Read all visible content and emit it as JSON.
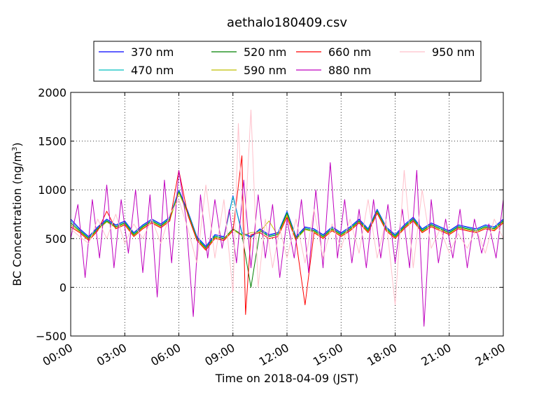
{
  "chart_data": {
    "type": "line",
    "title": "aethalo180409.csv",
    "xlabel": "Time on 2018-04-09 (JST)",
    "ylabel": "BC Concentration (ng/m",
    "ylabel_sup": "3",
    "ylabel_close": ")",
    "xlim": [
      0,
      24
    ],
    "ylim": [
      -500,
      2000
    ],
    "xticks": [
      0,
      3,
      6,
      9,
      12,
      15,
      18,
      21,
      24
    ],
    "xtick_labels": [
      "00:00",
      "03:00",
      "06:00",
      "09:00",
      "12:00",
      "15:00",
      "18:00",
      "21:00",
      "24:00"
    ],
    "yticks": [
      -500,
      0,
      500,
      1000,
      1500,
      2000
    ],
    "ytick_labels": [
      "−500",
      "0",
      "500",
      "1000",
      "1500",
      "2000"
    ],
    "grid": true,
    "legend_position": "top",
    "series": [
      {
        "name": "370 nm",
        "color": "#0000ff",
        "x": [
          0,
          0.5,
          1,
          1.5,
          2,
          2.5,
          3,
          3.5,
          4,
          4.5,
          5,
          5.5,
          6,
          6.5,
          7,
          7.5,
          8,
          8.5,
          9,
          9.5,
          10,
          10.5,
          11,
          11.5,
          12,
          12.5,
          13,
          13.5,
          14,
          14.5,
          15,
          15.5,
          16,
          16.5,
          17,
          17.5,
          18,
          18.5,
          19,
          19.5,
          20,
          20.5,
          21,
          21.5,
          22,
          22.5,
          23,
          23.5,
          24
        ],
        "y": [
          700,
          600,
          520,
          620,
          700,
          640,
          680,
          560,
          640,
          700,
          650,
          720,
          1000,
          780,
          520,
          420,
          540,
          520,
          940,
          560,
          520,
          600,
          540,
          560,
          780,
          520,
          620,
          600,
          540,
          620,
          560,
          620,
          700,
          600,
          800,
          620,
          540,
          640,
          720,
          600,
          660,
          620,
          580,
          640,
          620,
          600,
          640,
          620,
          700
        ]
      },
      {
        "name": "470 nm",
        "color": "#00bfbf",
        "x": [
          0,
          0.5,
          1,
          1.5,
          2,
          2.5,
          3,
          3.5,
          4,
          4.5,
          5,
          5.5,
          6,
          6.5,
          7,
          7.5,
          8,
          8.5,
          9,
          9.5,
          10,
          10.5,
          11,
          11.5,
          12,
          12.5,
          13,
          13.5,
          14,
          14.5,
          15,
          15.5,
          16,
          16.5,
          17,
          17.5,
          18,
          18.5,
          19,
          19.5,
          20,
          20.5,
          21,
          21.5,
          22,
          22.5,
          23,
          23.5,
          24
        ],
        "y": [
          680,
          590,
          510,
          610,
          690,
          630,
          670,
          550,
          630,
          690,
          640,
          710,
          990,
          770,
          510,
          410,
          530,
          510,
          930,
          550,
          510,
          590,
          530,
          550,
          770,
          510,
          610,
          590,
          530,
          610,
          550,
          610,
          690,
          590,
          790,
          610,
          530,
          630,
          710,
          590,
          650,
          610,
          570,
          630,
          610,
          590,
          630,
          610,
          690
        ]
      },
      {
        "name": "520 nm",
        "color": "#008000",
        "x": [
          0,
          0.5,
          1,
          1.5,
          2,
          2.5,
          3,
          3.5,
          4,
          4.5,
          5,
          5.5,
          6,
          6.5,
          7,
          7.5,
          8,
          8.5,
          9,
          9.5,
          10,
          10.5,
          11,
          11.5,
          12,
          12.5,
          13,
          13.5,
          14,
          14.5,
          15,
          15.5,
          16,
          16.5,
          17,
          17.5,
          18,
          18.5,
          19,
          19.5,
          20,
          20.5,
          21,
          21.5,
          22,
          22.5,
          23,
          23.5,
          24
        ],
        "y": [
          660,
          580,
          500,
          600,
          680,
          620,
          660,
          540,
          620,
          680,
          630,
          700,
          980,
          760,
          500,
          400,
          520,
          500,
          600,
          540,
          0,
          580,
          520,
          540,
          760,
          500,
          600,
          580,
          520,
          600,
          540,
          600,
          680,
          580,
          780,
          600,
          520,
          620,
          700,
          580,
          640,
          600,
          560,
          620,
          600,
          580,
          620,
          600,
          680
        ]
      },
      {
        "name": "590 nm",
        "color": "#bfbf00",
        "x": [
          0,
          0.5,
          1,
          1.5,
          2,
          2.5,
          3,
          3.5,
          4,
          4.5,
          5,
          5.5,
          6,
          6.5,
          7,
          7.5,
          8,
          8.5,
          9,
          9.5,
          10,
          10.5,
          11,
          11.5,
          12,
          12.5,
          13,
          13.5,
          14,
          14.5,
          15,
          15.5,
          16,
          16.5,
          17,
          17.5,
          18,
          18.5,
          19,
          19.5,
          20,
          20.5,
          21,
          21.5,
          22,
          22.5,
          23,
          23.5,
          24
        ],
        "y": [
          640,
          570,
          490,
          590,
          670,
          610,
          650,
          530,
          610,
          670,
          620,
          690,
          970,
          750,
          490,
          390,
          510,
          490,
          590,
          530,
          560,
          570,
          680,
          530,
          740,
          490,
          590,
          570,
          510,
          590,
          530,
          590,
          670,
          570,
          770,
          590,
          510,
          610,
          690,
          570,
          630,
          590,
          550,
          610,
          590,
          570,
          610,
          590,
          670
        ]
      },
      {
        "name": "660 nm",
        "color": "#ff0000",
        "x": [
          0,
          0.5,
          1,
          1.5,
          2,
          2.5,
          3,
          3.5,
          4,
          4.5,
          5,
          5.5,
          6,
          6.5,
          7,
          7.5,
          8,
          8.5,
          9,
          9.5,
          9.7,
          10,
          10.5,
          11,
          11.5,
          12,
          12.5,
          13,
          13.5,
          14,
          14.5,
          15,
          15.5,
          16,
          16.5,
          17,
          17.5,
          18,
          18.5,
          19,
          19.5,
          20,
          20.5,
          21,
          21.5,
          22,
          22.5,
          23,
          23.5,
          24
        ],
        "y": [
          620,
          560,
          480,
          580,
          780,
          600,
          640,
          520,
          600,
          660,
          610,
          680,
          1200,
          740,
          480,
          380,
          500,
          480,
          580,
          1350,
          -280,
          540,
          560,
          500,
          520,
          720,
          480,
          -180,
          560,
          500,
          580,
          520,
          580,
          660,
          560,
          760,
          580,
          500,
          600,
          680,
          560,
          620,
          580,
          540,
          600,
          580,
          560,
          600,
          580,
          660
        ]
      },
      {
        "name": "880 nm",
        "color": "#bf00bf",
        "x": [
          0,
          0.4,
          0.8,
          1.2,
          1.6,
          2,
          2.4,
          2.8,
          3.2,
          3.6,
          4,
          4.4,
          4.8,
          5.2,
          5.6,
          6,
          6.4,
          6.8,
          7.2,
          7.6,
          8,
          8.4,
          8.8,
          9.2,
          9.6,
          10,
          10.4,
          10.8,
          11.2,
          11.6,
          12,
          12.4,
          12.8,
          13.2,
          13.6,
          14,
          14.4,
          14.8,
          15.2,
          15.6,
          16,
          16.4,
          16.8,
          17.2,
          17.6,
          18,
          18.4,
          18.8,
          19.2,
          19.6,
          20,
          20.4,
          20.8,
          21.2,
          21.6,
          22,
          22.4,
          22.8,
          23.2,
          23.6,
          24
        ],
        "y": [
          500,
          850,
          100,
          900,
          300,
          1050,
          200,
          900,
          350,
          1000,
          150,
          950,
          -100,
          1100,
          250,
          1200,
          700,
          -300,
          950,
          300,
          900,
          400,
          800,
          250,
          1100,
          200,
          950,
          300,
          850,
          100,
          700,
          300,
          900,
          150,
          1000,
          200,
          1280,
          300,
          900,
          250,
          800,
          200,
          900,
          300,
          850,
          250,
          800,
          200,
          1200,
          -400,
          900,
          250,
          700,
          300,
          800,
          200,
          700,
          350,
          650,
          300,
          900
        ]
      },
      {
        "name": "950 nm",
        "color": "#ffc0cb",
        "x": [
          0,
          0.5,
          1,
          1.5,
          2,
          2.5,
          3,
          3.5,
          4,
          4.5,
          5,
          5.5,
          6,
          6.5,
          7,
          7.5,
          8,
          8.5,
          9,
          9.3,
          9.6,
          10,
          10.4,
          10.8,
          11.2,
          11.6,
          12,
          12.5,
          13,
          13.5,
          14,
          14.5,
          15,
          15.5,
          16,
          16.5,
          17,
          17.5,
          18,
          18.5,
          19,
          19.5,
          20,
          20.5,
          21,
          21.5,
          22,
          22.5,
          23,
          23.5,
          24
        ],
        "y": [
          600,
          520,
          450,
          700,
          500,
          750,
          450,
          650,
          500,
          700,
          450,
          750,
          900,
          600,
          250,
          1050,
          300,
          900,
          -50,
          1680,
          400,
          1820,
          0,
          700,
          200,
          600,
          300,
          700,
          250,
          800,
          300,
          650,
          400,
          700,
          350,
          900,
          300,
          700,
          -180,
          1200,
          200,
          1000,
          400,
          600,
          350,
          550,
          400,
          600,
          350,
          700,
          500
        ]
      }
    ]
  }
}
